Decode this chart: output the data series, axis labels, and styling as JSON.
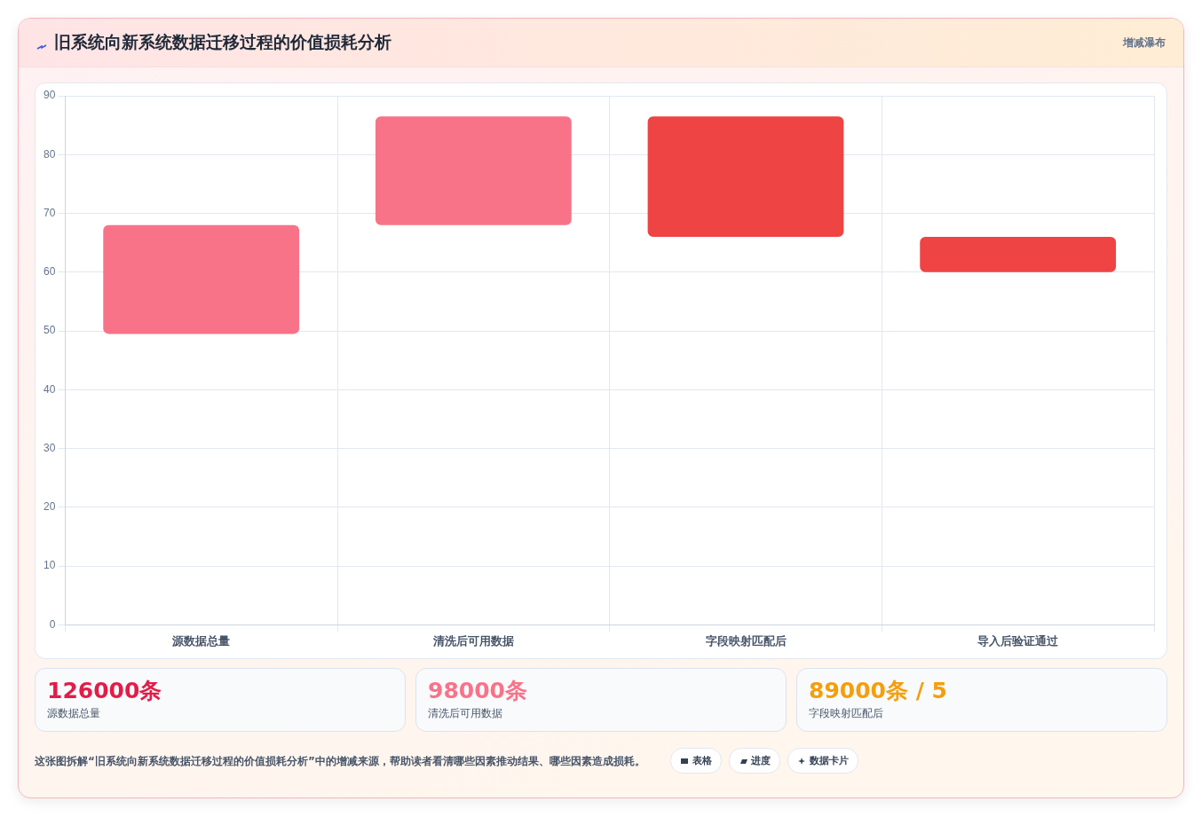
{
  "chart_data": {
    "type": "bar",
    "title": "旧系统向新系统数据迁移过程的价值损耗分析",
    "categories": [
      "源数据总量",
      "清洗后可用数据",
      "字段映射匹配后",
      "导入后验证通过"
    ],
    "values": [
      18.5,
      18.5,
      20.5,
      6
    ],
    "base": [
      49.5,
      68,
      66,
      60
    ],
    "colors": [
      "#f87388",
      "#f87388",
      "#ef4444",
      "#ef4444"
    ],
    "ylim": [
      0,
      90
    ],
    "yticks": [
      0,
      10,
      20,
      30,
      40,
      50,
      60,
      70,
      80,
      90
    ],
    "grid": true,
    "legend": false,
    "annotations": [
      "增减瀑布",
      "126000条",
      "源数据总量",
      "98000条",
      "清洗后可用数据",
      "89000条 / 5",
      "字段映射匹配后",
      "这张图拆解“旧系统向新系统数据迁移过程的价值损耗分析”中的增减来源，帮助读者看清哪些因素推动结果、哪些因素造成损耗。",
      "表格",
      "进度",
      "数据卡片"
    ]
  }
}
